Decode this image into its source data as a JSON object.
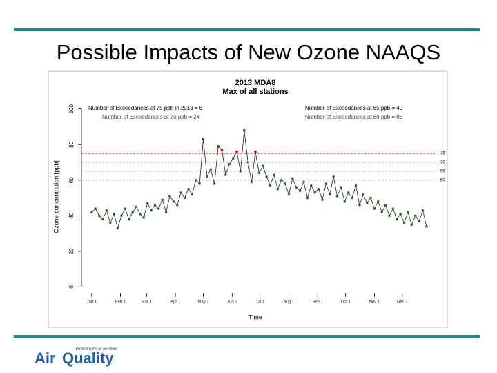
{
  "slide": {
    "title": "Possible Impacts of New Ozone NAAQS"
  },
  "footer": {
    "tagline": "Protecting the air we share",
    "logo_left": "Air",
    "logo_right": "Quality"
  },
  "chart_data": {
    "type": "scatter",
    "title": "2013 MDA8",
    "subtitle": "Max of all stations",
    "x_label": "Time",
    "y_label": "Ozone concentration [ppb]",
    "annotations": [
      "Number of Exceedances at 75 ppb in 2013 = 6",
      "Number of Exceedances at 70 ppb = 24",
      "Number of Exceedances at 65 ppb = 40",
      "Number of Exceedances at 60 ppb = 86"
    ],
    "references": [
      {
        "value": 75,
        "label": "75",
        "color": "#cc0000"
      },
      {
        "value": 70,
        "label": "70",
        "color": "#aaaaaa"
      },
      {
        "value": 65,
        "label": "65",
        "color": "#aaaaaa"
      },
      {
        "value": 60,
        "label": "60",
        "color": "#aaaaaa"
      }
    ],
    "color": "#2e7d32",
    "exceed_color": "#dd0000",
    "xlim": [
      -10,
      370
    ],
    "ylim": [
      -1,
      103
    ],
    "xticks": [
      {
        "value": 1,
        "label": "Jan 1"
      },
      {
        "value": 32,
        "label": "Feb 1"
      },
      {
        "value": 60,
        "label": "Mar 1"
      },
      {
        "value": 91,
        "label": "Apr 1"
      },
      {
        "value": 121,
        "label": "May 1"
      },
      {
        "value": 152,
        "label": "Jun 1"
      },
      {
        "value": 182,
        "label": "Jul 1"
      },
      {
        "value": 213,
        "label": "Aug 1"
      },
      {
        "value": 244,
        "label": "Sep 1"
      },
      {
        "value": 274,
        "label": "Oct 1"
      },
      {
        "value": 305,
        "label": "Nov 1"
      },
      {
        "value": 335,
        "label": "Dec 1"
      }
    ],
    "yticks": [
      0,
      20,
      40,
      60,
      80,
      100
    ],
    "x": [
      1,
      5,
      9,
      13,
      17,
      21,
      25,
      29,
      33,
      37,
      41,
      45,
      49,
      53,
      57,
      61,
      65,
      69,
      73,
      77,
      81,
      85,
      89,
      93,
      97,
      101,
      105,
      109,
      113,
      117,
      121,
      125,
      129,
      133,
      137,
      141,
      145,
      149,
      153,
      157,
      161,
      165,
      169,
      173,
      177,
      181,
      185,
      189,
      193,
      197,
      201,
      205,
      209,
      213,
      217,
      221,
      225,
      229,
      233,
      237,
      241,
      245,
      249,
      253,
      257,
      261,
      265,
      269,
      273,
      277,
      281,
      285,
      289,
      293,
      297,
      301,
      305,
      309,
      313,
      317,
      321,
      325,
      329,
      333,
      337,
      341,
      345,
      349,
      353,
      357,
      361
    ],
    "values": [
      42,
      44,
      40,
      38,
      43,
      36,
      41,
      33,
      40,
      44,
      38,
      42,
      45,
      41,
      39,
      47,
      43,
      46,
      44,
      49,
      42,
      51,
      48,
      46,
      53,
      50,
      55,
      52,
      60,
      58,
      83,
      62,
      66,
      58,
      79,
      77,
      63,
      69,
      72,
      76,
      65,
      88,
      70,
      59,
      76,
      64,
      68,
      62,
      57,
      63,
      55,
      60,
      58,
      52,
      61,
      56,
      54,
      59,
      50,
      57,
      53,
      55,
      49,
      58,
      52,
      62,
      51,
      56,
      48,
      53,
      50,
      57,
      46,
      52,
      47,
      50,
      44,
      48,
      42,
      46,
      40,
      44,
      38,
      41,
      36,
      42,
      35,
      40,
      37,
      43,
      34
    ]
  }
}
